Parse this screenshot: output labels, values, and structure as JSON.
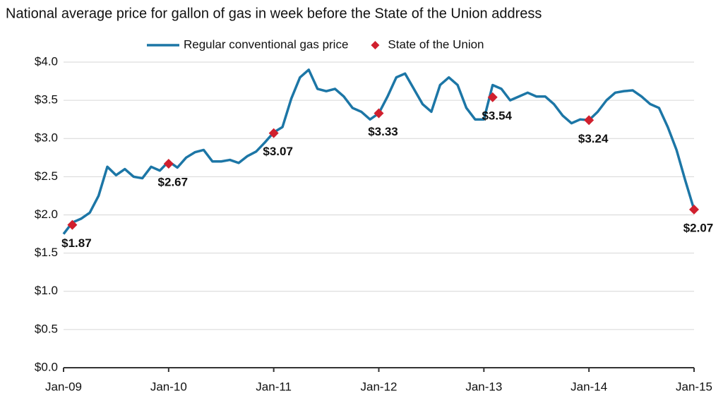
{
  "chart_data": {
    "type": "line",
    "title": "National average price for gallon of gas in week before the State of the Union address",
    "xlim": [
      "2009-01",
      "2015-01"
    ],
    "xticks": [
      {
        "value": "2009-01",
        "label": "Jan-09"
      },
      {
        "value": "2010-01",
        "label": "Jan-10"
      },
      {
        "value": "2011-01",
        "label": "Jan-11"
      },
      {
        "value": "2012-01",
        "label": "Jan-12"
      },
      {
        "value": "2013-01",
        "label": "Jan-13"
      },
      {
        "value": "2014-01",
        "label": "Jan-14"
      },
      {
        "value": "2015-01",
        "label": "Jan-15"
      }
    ],
    "ylim": [
      0,
      4
    ],
    "yticks": [
      {
        "value": 0,
        "label": "$0.0"
      },
      {
        "value": 0.5,
        "label": "$0.5"
      },
      {
        "value": 1,
        "label": "$1.0"
      },
      {
        "value": 1.5,
        "label": "$1.5"
      },
      {
        "value": 2,
        "label": "$2.0"
      },
      {
        "value": 2.5,
        "label": "$2.5"
      },
      {
        "value": 3,
        "label": "$3.0"
      },
      {
        "value": 3.5,
        "label": "$3.5"
      },
      {
        "value": 4,
        "label": "$4.0"
      }
    ],
    "grid": true,
    "series": [
      {
        "name": "Regular conventional gas price",
        "color": "#1c76a6",
        "x": [
          "2009-01",
          "2009-02",
          "2009-03",
          "2009-04",
          "2009-05",
          "2009-06",
          "2009-07",
          "2009-08",
          "2009-09",
          "2009-10",
          "2009-11",
          "2009-12",
          "2010-01",
          "2010-02",
          "2010-03",
          "2010-04",
          "2010-05",
          "2010-06",
          "2010-07",
          "2010-08",
          "2010-09",
          "2010-10",
          "2010-11",
          "2010-12",
          "2011-01",
          "2011-02",
          "2011-03",
          "2011-04",
          "2011-05",
          "2011-06",
          "2011-07",
          "2011-08",
          "2011-09",
          "2011-10",
          "2011-11",
          "2011-12",
          "2012-01",
          "2012-02",
          "2012-03",
          "2012-04",
          "2012-05",
          "2012-06",
          "2012-07",
          "2012-08",
          "2012-09",
          "2012-10",
          "2012-11",
          "2012-12",
          "2013-01",
          "2013-02",
          "2013-03",
          "2013-04",
          "2013-05",
          "2013-06",
          "2013-07",
          "2013-08",
          "2013-09",
          "2013-10",
          "2013-11",
          "2013-12",
          "2014-01",
          "2014-02",
          "2014-03",
          "2014-04",
          "2014-05",
          "2014-06",
          "2014-07",
          "2014-08",
          "2014-09",
          "2014-10",
          "2014-11",
          "2014-12",
          "2015-01"
        ],
        "values": [
          1.75,
          1.9,
          1.95,
          2.03,
          2.25,
          2.63,
          2.52,
          2.6,
          2.5,
          2.48,
          2.63,
          2.58,
          2.7,
          2.62,
          2.75,
          2.82,
          2.85,
          2.7,
          2.7,
          2.72,
          2.68,
          2.77,
          2.83,
          2.95,
          3.08,
          3.15,
          3.52,
          3.8,
          3.9,
          3.65,
          3.62,
          3.65,
          3.55,
          3.4,
          3.35,
          3.25,
          3.33,
          3.55,
          3.8,
          3.85,
          3.65,
          3.45,
          3.35,
          3.7,
          3.8,
          3.7,
          3.4,
          3.25,
          3.25,
          3.7,
          3.65,
          3.5,
          3.55,
          3.6,
          3.55,
          3.55,
          3.45,
          3.3,
          3.2,
          3.25,
          3.24,
          3.35,
          3.5,
          3.6,
          3.62,
          3.63,
          3.55,
          3.45,
          3.4,
          3.15,
          2.85,
          2.45,
          2.07
        ]
      },
      {
        "name": "State of the Union",
        "color": "#d0202e",
        "type": "scatter",
        "x": [
          "2009-02",
          "2010-01",
          "2011-01",
          "2012-01",
          "2013-02",
          "2014-01",
          "2015-01"
        ],
        "values": [
          1.87,
          2.67,
          3.07,
          3.33,
          3.54,
          3.24,
          2.07
        ],
        "value_labels": [
          "$1.87",
          "$2.67",
          "$3.07",
          "$3.33",
          "$3.54",
          "$3.24",
          "$2.07"
        ]
      }
    ]
  }
}
